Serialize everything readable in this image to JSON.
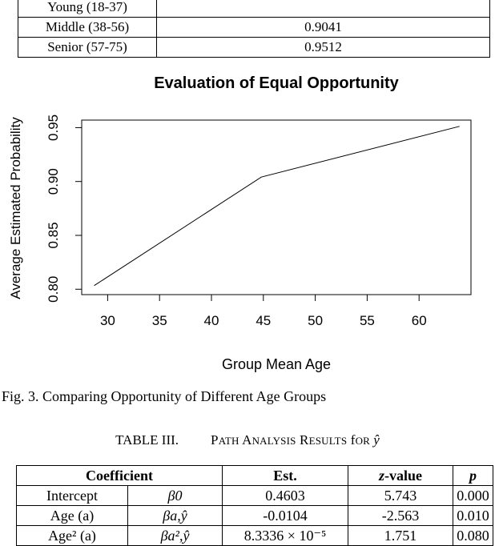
{
  "top_table": {
    "rows": [
      {
        "group": "Young (18-37)",
        "value": ""
      },
      {
        "group": "Middle (38-56)",
        "value": "0.9041"
      },
      {
        "group": "Senior (57-75)",
        "value": "0.9512"
      }
    ]
  },
  "chart_data": {
    "type": "line",
    "title": "Evaluation of Equal Opportunity",
    "xlabel": "Group Mean Age",
    "ylabel": "Average Estimated Probability",
    "x": [
      28.7,
      44.8,
      63.9
    ],
    "y": [
      0.8034,
      0.9041,
      0.9512
    ],
    "xlim": [
      27.5,
      65.0
    ],
    "ylim": [
      0.795,
      0.957
    ],
    "xticks": [
      "30",
      "35",
      "40",
      "45",
      "50",
      "55",
      "60"
    ],
    "yticks": [
      "0.80",
      "0.85",
      "0.90",
      "0.95"
    ],
    "grid": false,
    "line_color": "#000000"
  },
  "figure_caption": "Fig. 3.   Comparing Opportunity of Different Age Groups",
  "table3": {
    "label": "TABLE III.",
    "title_prefix": "Path Analysis Results for ",
    "title_symbol": "ŷ",
    "headers": [
      "Coefficient",
      "Est.",
      "z-value",
      "p"
    ],
    "rows": [
      {
        "name": "Intercept",
        "symbol": "β0",
        "est": "0.4603",
        "z": "5.743",
        "p": "0.000"
      },
      {
        "name": "Age (a)",
        "symbol": "βa,ŷ",
        "est": "-0.0104",
        "z": "-2.563",
        "p": "0.010"
      },
      {
        "name": "Age² (a)",
        "symbol": "βa²,ŷ",
        "est": "8.3336 × 10⁻⁵",
        "z": "1.751",
        "p": "0.080"
      }
    ]
  }
}
